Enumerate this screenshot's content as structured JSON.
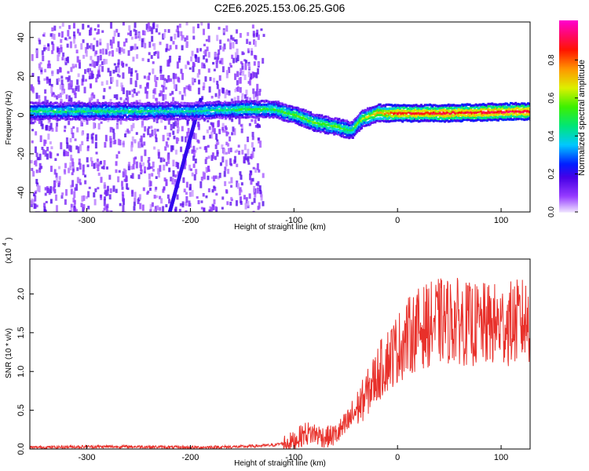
{
  "title": "C2E6.2025.153.06.25.G06",
  "colors": {
    "snr_line": "#e8302a",
    "band_low": "#6a00ff",
    "band_high": "#ff1a1a"
  },
  "chart_data": [
    {
      "type": "heatmap",
      "xlabel": "Height of straight line (km)",
      "ylabel": "Frequency (Hz)",
      "xlim": [
        -355,
        128
      ],
      "ylim": [
        -50,
        48
      ],
      "x_ticks": [
        -300,
        -200,
        -100,
        0,
        100
      ],
      "y_ticks": [
        -40,
        -20,
        0,
        20,
        40
      ],
      "colorbar": {
        "label": "Normalized spectral amplitude",
        "range": [
          0,
          1
        ],
        "ticks": [
          "0.0",
          "0.2",
          "0.4",
          "0.6",
          "0.8"
        ],
        "colormap": "rainbow"
      },
      "ridge": {
        "description_points_x": [
          -355,
          -300,
          -250,
          -200,
          -150,
          -120,
          -100,
          -80,
          -60,
          -45,
          -35,
          -20,
          0,
          50,
          128
        ],
        "center_freq": [
          2,
          2,
          2,
          2,
          3,
          3,
          0,
          -4,
          -6,
          -8,
          -2,
          1,
          1,
          1,
          2
        ],
        "amplitude": [
          0.45,
          0.45,
          0.45,
          0.4,
          0.5,
          0.5,
          0.55,
          0.55,
          0.55,
          0.5,
          0.6,
          0.7,
          0.85,
          0.88,
          0.9
        ]
      },
      "noise_region_x": [
        -355,
        -130
      ]
    },
    {
      "type": "line",
      "xlabel": "Height of straight line (km)",
      "ylabel": "SNR (10 * v/v)",
      "y_scale_label": "(x10",
      "y_scale_exp": "4",
      "xlim": [
        -355,
        128
      ],
      "ylim": [
        0,
        2.45
      ],
      "x_ticks": [
        -300,
        -200,
        -100,
        0,
        100
      ],
      "y_ticks": [
        "0.0",
        "0.5",
        "1.0",
        "1.5",
        "2.0"
      ],
      "series": [
        {
          "x": [
            -355,
            -300,
            -250,
            -200,
            -150,
            -120,
            -100,
            -90,
            -80,
            -70,
            -60,
            -50,
            -40,
            -30,
            -20,
            -10,
            0,
            10,
            20,
            30,
            40,
            50,
            60,
            70,
            80,
            90,
            100,
            110,
            120,
            128
          ],
          "values": [
            0.02,
            0.03,
            0.03,
            0.02,
            0.03,
            0.05,
            0.1,
            0.2,
            0.2,
            0.15,
            0.18,
            0.3,
            0.5,
            0.7,
            0.95,
            1.15,
            1.3,
            1.45,
            1.55,
            1.6,
            1.65,
            1.65,
            1.65,
            1.6,
            1.6,
            1.6,
            1.6,
            1.62,
            1.65,
            1.65
          ]
        }
      ]
    }
  ]
}
